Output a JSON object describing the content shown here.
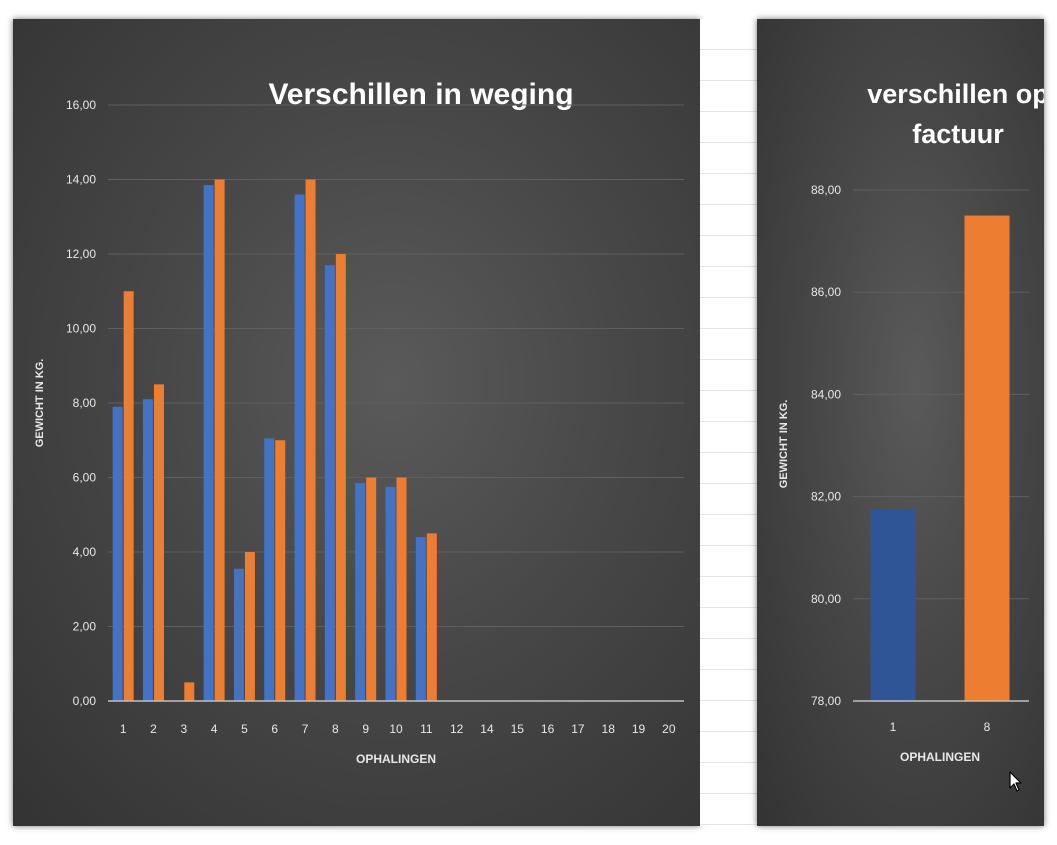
{
  "chart_data": [
    {
      "type": "bar",
      "title": "Verschillen in weging",
      "xlabel": "OPHALINGEN",
      "ylabel": "GEWICHT IN KG.",
      "ylim": [
        0,
        16
      ],
      "yticks": [
        "0,00",
        "2,00",
        "4,00",
        "6,00",
        "8,00",
        "10,00",
        "12,00",
        "14,00",
        "16,00"
      ],
      "grid": true,
      "categories": [
        "1",
        "2",
        "3",
        "4",
        "5",
        "6",
        "7",
        "8",
        "9",
        "10",
        "11",
        "12",
        "14",
        "15",
        "16",
        "17",
        "18",
        "19",
        "20"
      ],
      "series": [
        {
          "color": "#4472c4",
          "values": [
            7.9,
            8.1,
            0,
            13.85,
            3.55,
            7.05,
            13.6,
            11.7,
            5.85,
            5.75,
            4.4,
            0,
            0,
            0,
            0,
            0,
            0,
            0,
            0
          ]
        },
        {
          "color": "#ed7d31",
          "values": [
            11.0,
            8.5,
            0.5,
            14.0,
            4.0,
            7.0,
            14.0,
            12.0,
            6.0,
            6.0,
            4.5,
            0,
            0,
            0,
            0,
            0,
            0,
            0,
            0
          ]
        }
      ]
    },
    {
      "type": "bar",
      "title": "verschillen op factuur",
      "xlabel": "OPHALINGEN",
      "ylabel": "GEWICHT IN KG.",
      "ylim": [
        78,
        88
      ],
      "yticks": [
        "78,00",
        "80,00",
        "82,00",
        "84,00",
        "86,00",
        "88,00"
      ],
      "grid": true,
      "categories": [
        "1",
        "8"
      ],
      "values": [
        81.75,
        87.5
      ],
      "colors": [
        "#2f5597",
        "#ed7d31"
      ]
    }
  ],
  "colors": {
    "grid": "#5f5f5f",
    "axis": "#bfbfbf",
    "text": "#e8e8e8"
  },
  "icons": {
    "cursor": "mouse-pointer-icon"
  }
}
